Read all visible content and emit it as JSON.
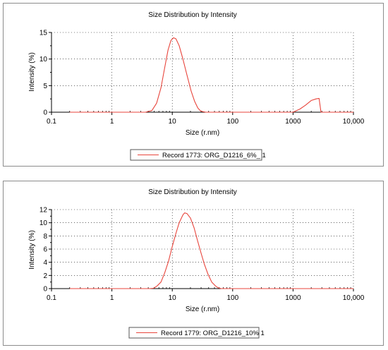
{
  "colors": {
    "series": "#e8453c",
    "grid": "#000000",
    "axis": "#000000"
  },
  "chart_data": [
    {
      "type": "line",
      "title": "Size Distribution by Intensity",
      "xlabel": "Size (r.nm)",
      "ylabel": "Intensity (%)",
      "xscale": "log",
      "xlim": [
        0.1,
        10000
      ],
      "ylim": [
        0,
        15
      ],
      "xticks": [
        0.1,
        1,
        10,
        100,
        1000,
        10000
      ],
      "xtick_labels": [
        "0.1",
        "1",
        "10",
        "100",
        "1000",
        "10,000"
      ],
      "yticks": [
        0,
        5,
        10,
        15
      ],
      "ytick_labels": [
        "0",
        "5",
        "10",
        "15"
      ],
      "grid": true,
      "legend_position": "bottom-center",
      "series": [
        {
          "name": "Record 1773: ORG_D1216_6%_ 1",
          "x": [
            0.2,
            1,
            3.6,
            4.6,
            5.5,
            6.5,
            7.5,
            8.5,
            9.5,
            10.5,
            11.5,
            13,
            15,
            17.5,
            20.5,
            23.5,
            26.5,
            29,
            32,
            36,
            45,
            100,
            500,
            1000,
            1300,
            1600,
            2000,
            2400,
            2700,
            2900,
            3300,
            10000
          ],
          "y": [
            0,
            0,
            0,
            0.3,
            1.7,
            4.6,
            8.4,
            11.7,
            13.5,
            14.0,
            13.8,
            12.5,
            10,
            7.0,
            4.0,
            2.0,
            0.8,
            0.3,
            0.1,
            0,
            0,
            0,
            0,
            0,
            0.6,
            1.3,
            2.2,
            2.5,
            2.6,
            0,
            0,
            0
          ]
        }
      ]
    },
    {
      "type": "line",
      "title": "Size Distribution by Intensity",
      "xlabel": "Size (r.nm)",
      "ylabel": "Intensity (%)",
      "xscale": "log",
      "xlim": [
        0.1,
        10000
      ],
      "ylim": [
        0,
        12
      ],
      "xticks": [
        0.1,
        1,
        10,
        100,
        1000,
        10000
      ],
      "xtick_labels": [
        "0.1",
        "1",
        "10",
        "100",
        "1000",
        "10,000"
      ],
      "yticks": [
        0,
        2,
        4,
        6,
        8,
        10,
        12
      ],
      "ytick_labels": [
        "0",
        "2",
        "4",
        "6",
        "8",
        "10",
        "12"
      ],
      "grid": true,
      "legend_position": "bottom-center",
      "series": [
        {
          "name": "Record 1779: ORG_D1216_10% 1",
          "x": [
            0.2,
            1,
            4.2,
            4.9,
            5.6,
            6.5,
            7.5,
            8.7,
            10,
            11.5,
            13,
            15,
            16,
            17.5,
            20,
            23,
            26,
            30,
            34,
            39,
            45,
            52,
            58,
            65,
            75,
            100,
            1000,
            10000
          ],
          "y": [
            0,
            0,
            0,
            0.05,
            0.4,
            1.0,
            2.4,
            4.2,
            6.4,
            8.4,
            10.0,
            11.2,
            11.5,
            11.4,
            10.7,
            9.2,
            7.4,
            5.4,
            3.7,
            2.2,
            1.0,
            0.4,
            0.1,
            0,
            0,
            0,
            0,
            0
          ]
        }
      ]
    }
  ]
}
